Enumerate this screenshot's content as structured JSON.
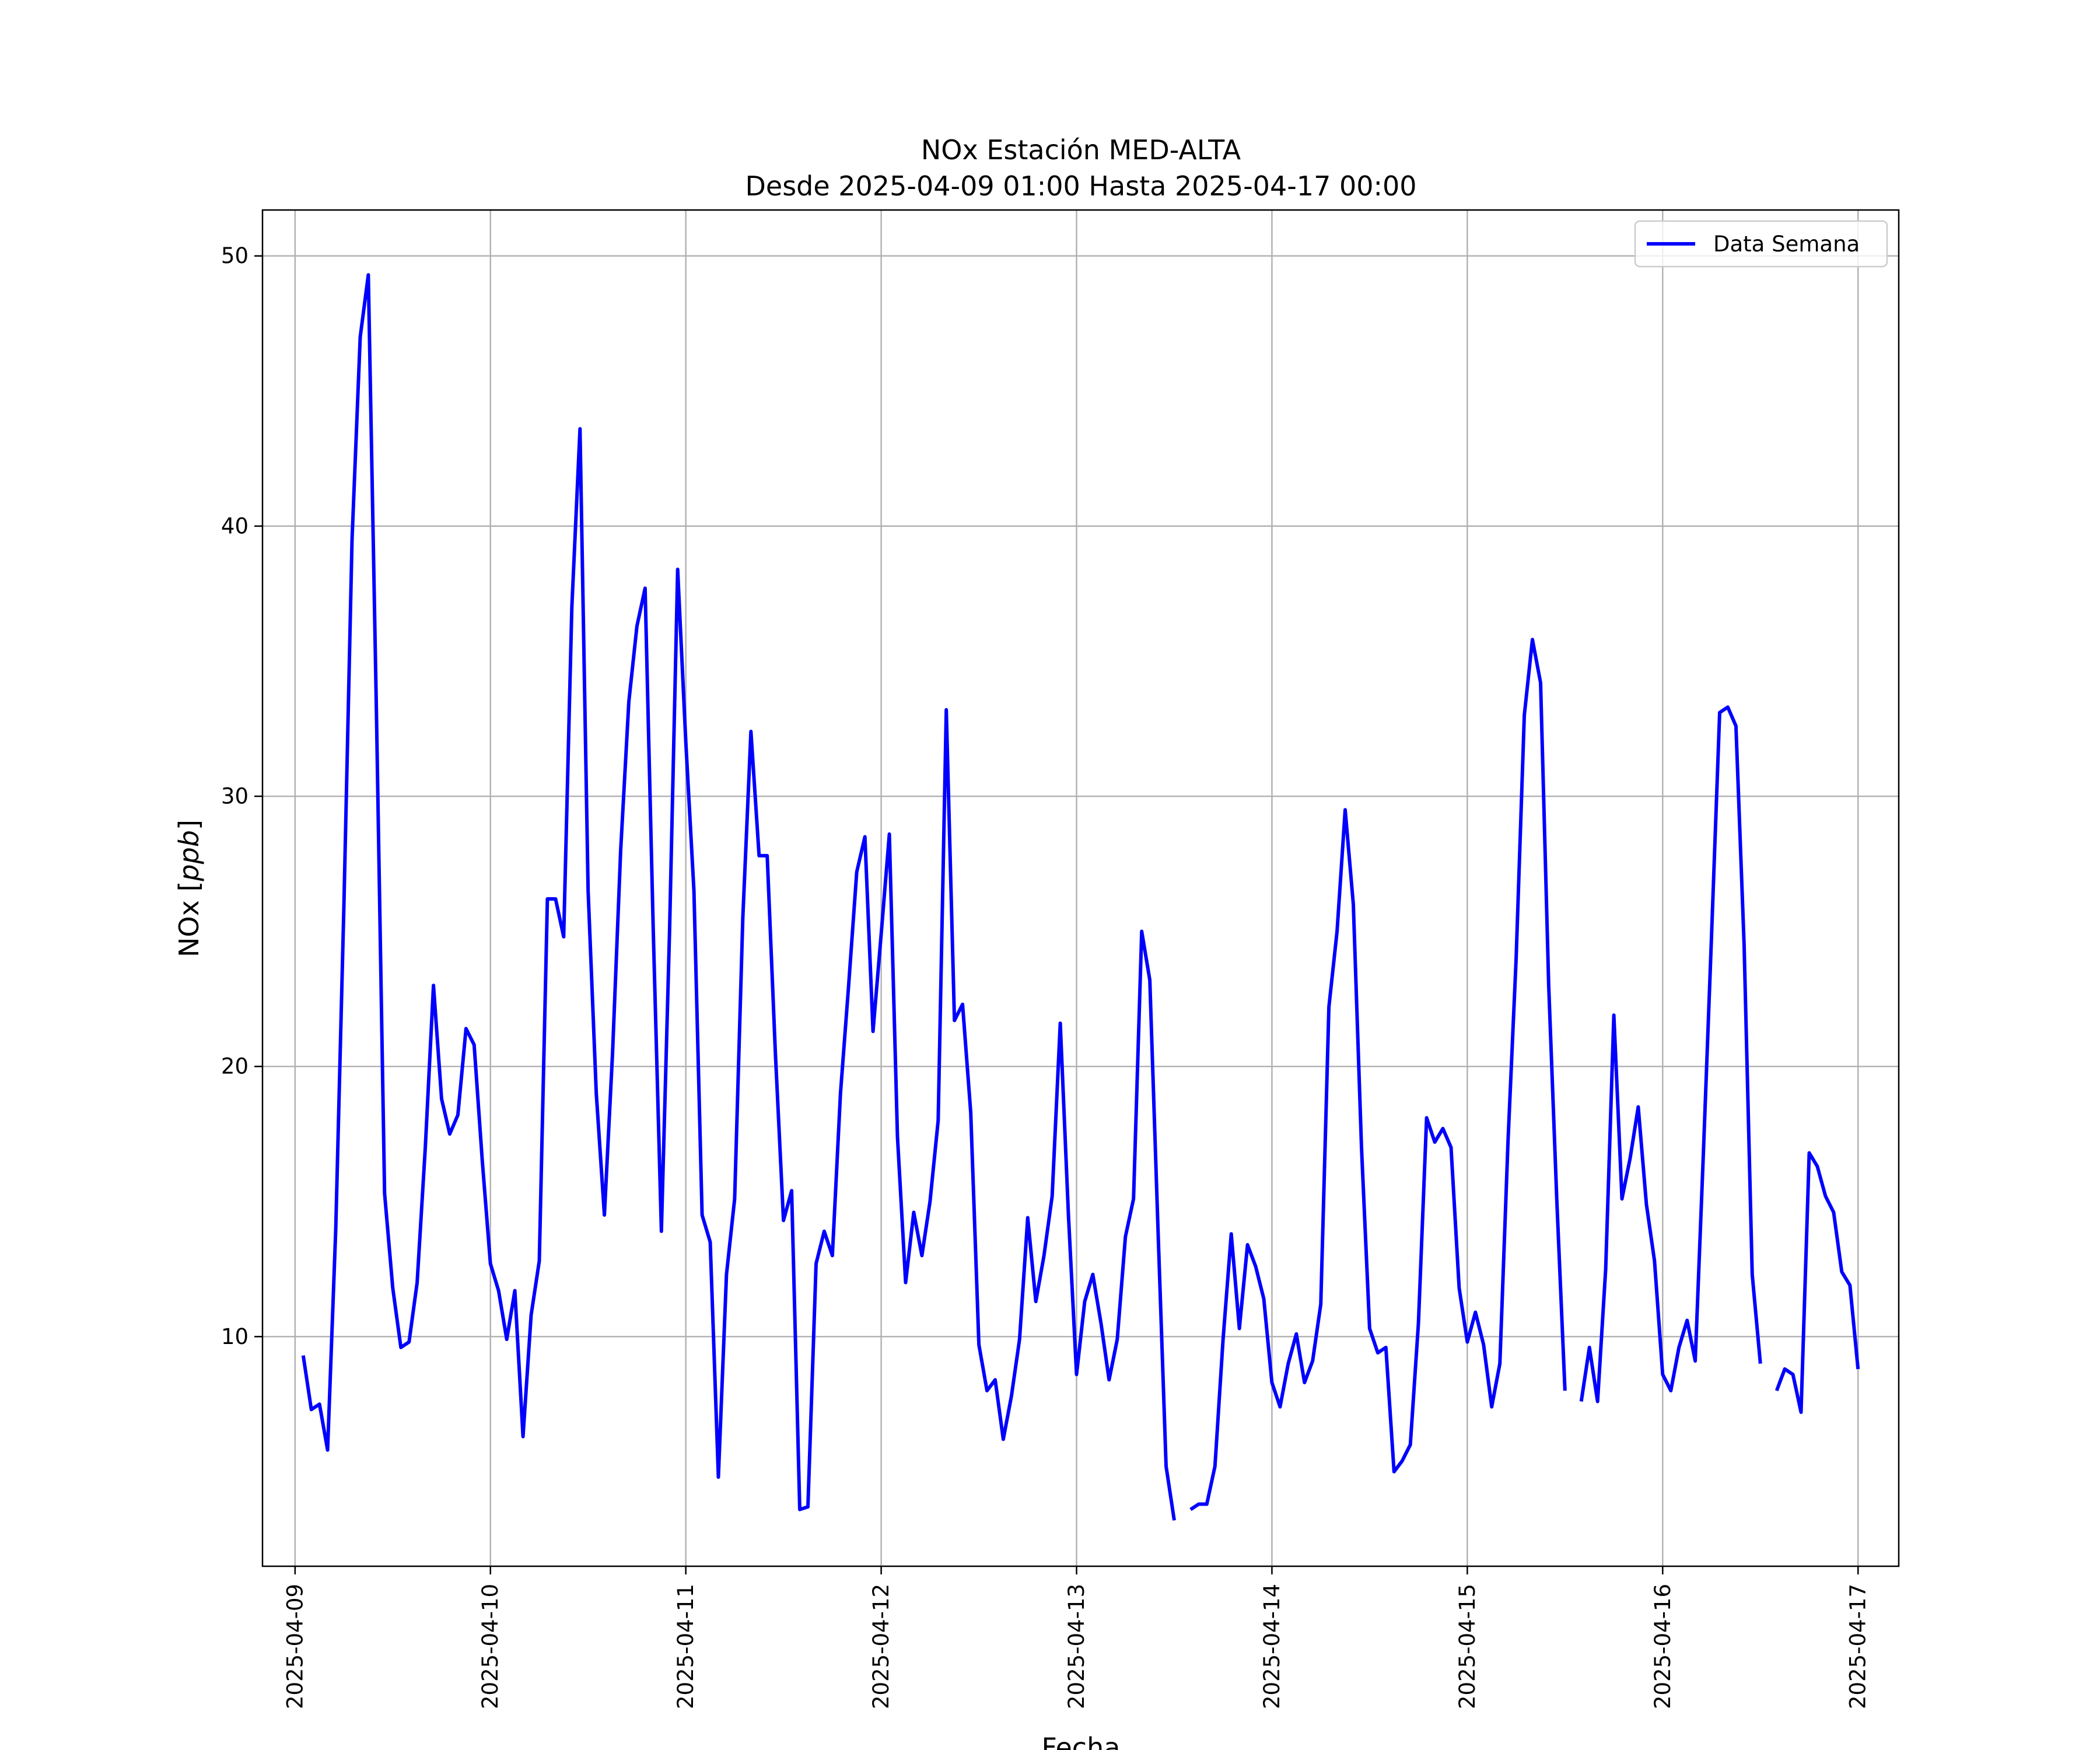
{
  "chart_data": {
    "type": "line",
    "title": "NOx Estación MED-ALTA",
    "subtitle": "Desde 2025-04-09 01:00 Hasta 2025-04-17 00:00",
    "xlabel": "Fecha",
    "ylabel_prefix": "NOx [",
    "ylabel_unit": "ppb",
    "ylabel_suffix": "]",
    "x_type": "datetime",
    "x_step_hours": 1,
    "x_start": "2025-04-09 01:00",
    "x_end": "2025-04-17 00:00",
    "xlim": [
      "2025-04-08 20:00",
      "2025-04-17 05:00"
    ],
    "ylim": [
      1.5,
      51.7
    ],
    "x_ticks": [
      "2025-04-09",
      "2025-04-10",
      "2025-04-11",
      "2025-04-12",
      "2025-04-13",
      "2025-04-14",
      "2025-04-15",
      "2025-04-16",
      "2025-04-17"
    ],
    "y_ticks": [
      10,
      20,
      30,
      40,
      50
    ],
    "grid": true,
    "legend_position": "top-right",
    "series": [
      {
        "name": "Data Semana",
        "color": "#0000ff",
        "values": [
          9.3,
          7.3,
          7.5,
          5.8,
          14.0,
          26.0,
          39.5,
          47.0,
          49.3,
          33.0,
          15.3,
          11.8,
          9.6,
          9.8,
          12.0,
          17.0,
          23.0,
          18.8,
          17.5,
          18.2,
          21.4,
          20.8,
          16.5,
          12.7,
          11.7,
          9.9,
          11.7,
          6.3,
          10.8,
          12.8,
          26.2,
          26.2,
          24.8,
          37.0,
          43.6,
          26.5,
          19.0,
          14.5,
          20.5,
          28.0,
          33.5,
          36.3,
          37.7,
          25.0,
          13.9,
          25.0,
          38.4,
          32.0,
          26.5,
          14.5,
          13.5,
          4.8,
          12.3,
          15.1,
          25.5,
          32.4,
          27.8,
          27.8,
          20.5,
          14.3,
          15.4,
          3.6,
          3.7,
          12.7,
          13.9,
          13.0,
          19.0,
          23.0,
          27.2,
          28.5,
          21.3,
          24.9,
          28.6,
          17.4,
          12.0,
          14.6,
          13.0,
          15.0,
          18.0,
          33.2,
          21.7,
          22.3,
          18.3,
          9.7,
          8.0,
          8.4,
          6.2,
          7.8,
          9.9,
          14.4,
          11.3,
          13.0,
          15.2,
          21.6,
          14.5,
          8.6,
          11.3,
          12.3,
          10.5,
          8.4,
          9.9,
          13.7,
          15.1,
          25.0,
          23.2,
          14.0,
          5.2,
          3.2,
          null,
          3.6,
          3.8,
          3.8,
          5.2,
          9.9,
          13.8,
          10.3,
          13.4,
          12.6,
          11.4,
          8.3,
          7.4,
          9.0,
          10.1,
          8.3,
          9.1,
          11.2,
          22.2,
          25.0,
          29.5,
          26.0,
          17.0,
          10.3,
          9.4,
          9.6,
          5.0,
          5.4,
          6.0,
          10.5,
          18.1,
          17.2,
          17.7,
          17.0,
          11.8,
          9.8,
          10.9,
          9.7,
          7.4,
          9.0,
          17.2,
          24.0,
          33.0,
          35.8,
          34.2,
          23.0,
          15.0,
          8.0,
          null,
          7.6,
          9.6,
          7.6,
          12.5,
          21.9,
          15.1,
          16.6,
          18.5,
          14.9,
          12.8,
          8.6,
          8.0,
          9.6,
          10.6,
          9.1,
          16.8,
          24.8,
          33.1,
          33.3,
          32.6,
          24.5,
          12.3,
          9.0,
          null,
          8.0,
          8.8,
          8.6,
          7.2,
          16.8,
          16.3,
          15.2,
          14.6,
          12.4,
          11.9,
          8.8
        ]
      }
    ]
  }
}
